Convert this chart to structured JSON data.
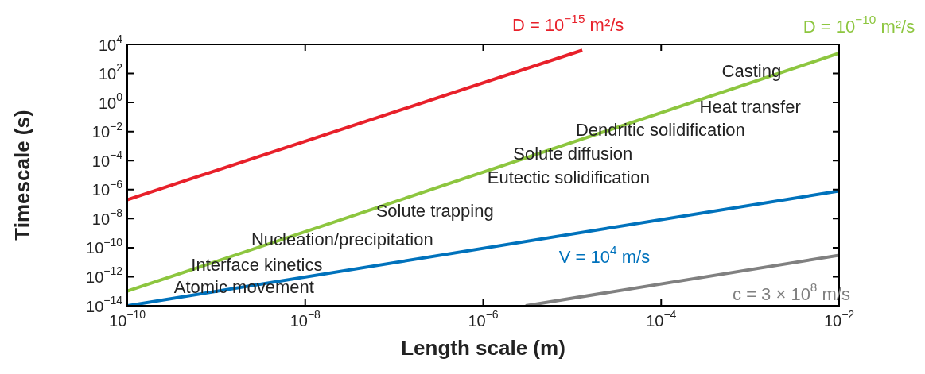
{
  "chart_data": {
    "type": "line",
    "xlabel": "Length scale (m)",
    "ylabel": "Timescale (s)",
    "log": "xy",
    "grid": false,
    "legend": false,
    "marker": "none",
    "line_style": "solid",
    "xlim": [
      1e-10,
      0.01
    ],
    "ylim": [
      1e-14,
      10000.0
    ],
    "xticks": [
      {
        "value": 1e-10,
        "label": "10$^{−10}$"
      },
      {
        "value": 1e-08,
        "label": "10$^{−8}$"
      },
      {
        "value": 1e-06,
        "label": "10$^{−6}$"
      },
      {
        "value": 0.0001,
        "label": "10$^{−4}$"
      },
      {
        "value": 0.01,
        "label": "10$^{−2}$"
      }
    ],
    "yticks": [
      {
        "value": 1e-14,
        "label": "10$^{−14}$"
      },
      {
        "value": 1e-12,
        "label": "10$^{−12}$"
      },
      {
        "value": 1e-10,
        "label": "10$^{−10}$"
      },
      {
        "value": 1e-08,
        "label": "10$^{−8}$"
      },
      {
        "value": 1e-06,
        "label": "10$^{−6}$"
      },
      {
        "value": 0.0001,
        "label": "10$^{−4}$"
      },
      {
        "value": 0.01,
        "label": "10$^{−2}$"
      },
      {
        "value": 1,
        "label": "10$^{0}$"
      },
      {
        "value": 100,
        "label": "10$^{2}$"
      },
      {
        "value": 10000,
        "label": "10$^{4}$"
      }
    ],
    "series": [
      {
        "name": "D = 10$^{−15}$ m²/s",
        "color": "#e8202a",
        "x": [
          1e-10,
          1.3e-05
        ],
        "values": [
          2e-07,
          4000.0
        ]
      },
      {
        "name": "D = 10$^{−10}$ m²/s",
        "color": "#8dc63f",
        "x": [
          1e-10,
          0.01
        ],
        "values": [
          1e-13,
          2500.0
        ]
      },
      {
        "name": "V = 10$^{4}$ m/s",
        "color": "#0072bc",
        "x": [
          1e-10,
          0.01
        ],
        "values": [
          1e-14,
          8e-07
        ]
      },
      {
        "name": "c = 3 × 10$^{8}$ m/s",
        "color": "#808080",
        "x": [
          3e-06,
          0.01
        ],
        "values": [
          1e-14,
          3e-11
        ]
      }
    ],
    "annotations": [
      "Casting",
      "Heat transfer",
      "Dendritic solidification",
      "Solute diffusion",
      "Eutectic solidification",
      "Solute trapping",
      "Nucleation/precipitation",
      "Interface kinetics",
      "Atomic movement"
    ]
  }
}
